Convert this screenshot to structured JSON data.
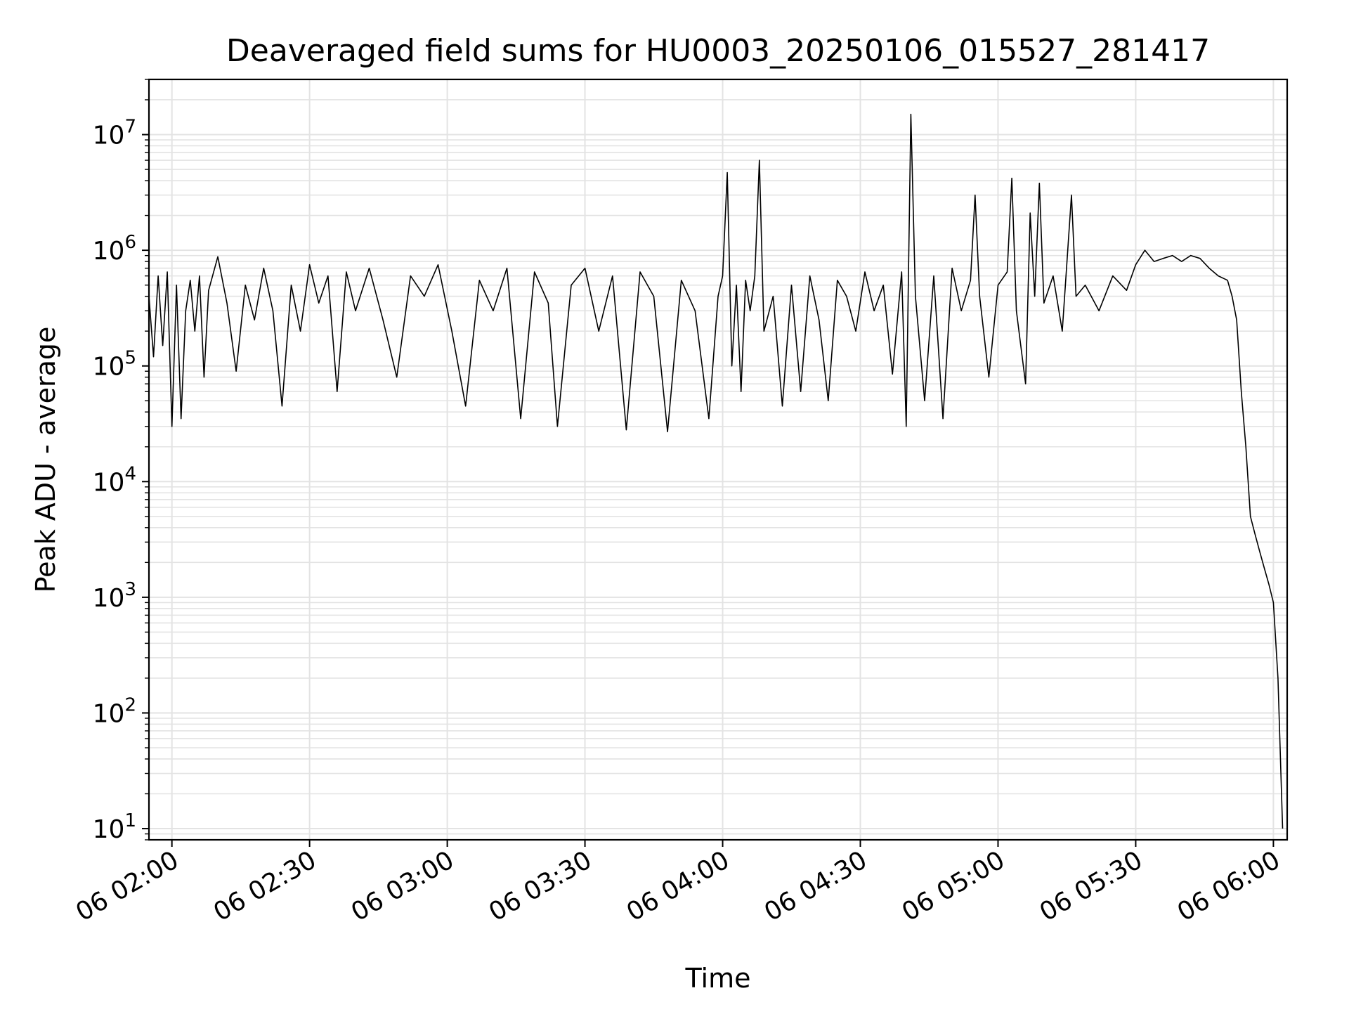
{
  "chart_data": {
    "type": "line",
    "title": "Deaveraged field sums for HU0003_20250106_015527_281417",
    "xlabel": "Time",
    "ylabel": "Peak ADU - average",
    "y_scale": "log",
    "ylim": [
      8,
      30000000
    ],
    "xlim": [
      "06 01:55",
      "06 06:03"
    ],
    "x_ticks": [
      {
        "time": "06 02:00",
        "label": "06 02:00"
      },
      {
        "time": "06 02:30",
        "label": "06 02:30"
      },
      {
        "time": "06 03:00",
        "label": "06 03:00"
      },
      {
        "time": "06 03:30",
        "label": "06 03:30"
      },
      {
        "time": "06 04:00",
        "label": "06 04:00"
      },
      {
        "time": "06 04:30",
        "label": "06 04:30"
      },
      {
        "time": "06 05:00",
        "label": "06 05:00"
      },
      {
        "time": "06 05:30",
        "label": "06 05:30"
      },
      {
        "time": "06 06:00",
        "label": "06 06:00"
      }
    ],
    "y_ticks": [
      {
        "value": 10,
        "base": "10",
        "exp": "1"
      },
      {
        "value": 100,
        "base": "10",
        "exp": "2"
      },
      {
        "value": 1000,
        "base": "10",
        "exp": "3"
      },
      {
        "value": 10000,
        "base": "10",
        "exp": "4"
      },
      {
        "value": 100000,
        "base": "10",
        "exp": "5"
      },
      {
        "value": 1000000,
        "base": "10",
        "exp": "6"
      },
      {
        "value": 10000000,
        "base": "10",
        "exp": "7"
      }
    ],
    "grid": true,
    "line_color": "#000000",
    "grid_color": "#e3e3e3",
    "series": [
      {
        "points": [
          [
            "06 01:55",
            400000
          ],
          [
            "06 01:56",
            120000
          ],
          [
            "06 01:57",
            600000
          ],
          [
            "06 01:58",
            150000
          ],
          [
            "06 01:59",
            650000
          ],
          [
            "06 02:00",
            30000
          ],
          [
            "06 02:01",
            500000
          ],
          [
            "06 02:02",
            35000
          ],
          [
            "06 02:03",
            300000
          ],
          [
            "06 02:04",
            550000
          ],
          [
            "06 02:05",
            200000
          ],
          [
            "06 02:06",
            600000
          ],
          [
            "06 02:07",
            80000
          ],
          [
            "06 02:08",
            450000
          ],
          [
            "06 02:10",
            880000
          ],
          [
            "06 02:12",
            350000
          ],
          [
            "06 02:14",
            90000
          ],
          [
            "06 02:16",
            500000
          ],
          [
            "06 02:18",
            250000
          ],
          [
            "06 02:20",
            700000
          ],
          [
            "06 02:22",
            300000
          ],
          [
            "06 02:24",
            45000
          ],
          [
            "06 02:26",
            500000
          ],
          [
            "06 02:28",
            200000
          ],
          [
            "06 02:30",
            750000
          ],
          [
            "06 02:32",
            350000
          ],
          [
            "06 02:34",
            600000
          ],
          [
            "06 02:36",
            60000
          ],
          [
            "06 02:38",
            650000
          ],
          [
            "06 02:40",
            300000
          ],
          [
            "06 02:43",
            700000
          ],
          [
            "06 02:46",
            250000
          ],
          [
            "06 02:49",
            80000
          ],
          [
            "06 02:52",
            600000
          ],
          [
            "06 02:55",
            400000
          ],
          [
            "06 02:58",
            750000
          ],
          [
            "06 03:01",
            200000
          ],
          [
            "06 03:04",
            45000
          ],
          [
            "06 03:07",
            550000
          ],
          [
            "06 03:10",
            300000
          ],
          [
            "06 03:13",
            700000
          ],
          [
            "06 03:16",
            35000
          ],
          [
            "06 03:19",
            650000
          ],
          [
            "06 03:22",
            350000
          ],
          [
            "06 03:24",
            30000
          ],
          [
            "06 03:27",
            500000
          ],
          [
            "06 03:30",
            700000
          ],
          [
            "06 03:33",
            200000
          ],
          [
            "06 03:36",
            600000
          ],
          [
            "06 03:39",
            28000
          ],
          [
            "06 03:42",
            650000
          ],
          [
            "06 03:45",
            400000
          ],
          [
            "06 03:48",
            27000
          ],
          [
            "06 03:51",
            550000
          ],
          [
            "06 03:54",
            300000
          ],
          [
            "06 03:57",
            35000
          ],
          [
            "06 03:59",
            400000
          ],
          [
            "06 04:00",
            600000
          ],
          [
            "06 04:01",
            4700000
          ],
          [
            "06 04:02",
            100000
          ],
          [
            "06 04:03",
            500000
          ],
          [
            "06 04:04",
            60000
          ],
          [
            "06 04:05",
            550000
          ],
          [
            "06 04:06",
            300000
          ],
          [
            "06 04:07",
            600000
          ],
          [
            "06 04:08",
            6000000
          ],
          [
            "06 04:09",
            200000
          ],
          [
            "06 04:11",
            400000
          ],
          [
            "06 04:13",
            45000
          ],
          [
            "06 04:15",
            500000
          ],
          [
            "06 04:17",
            60000
          ],
          [
            "06 04:19",
            600000
          ],
          [
            "06 04:21",
            250000
          ],
          [
            "06 04:23",
            50000
          ],
          [
            "06 04:25",
            550000
          ],
          [
            "06 04:27",
            400000
          ],
          [
            "06 04:29",
            200000
          ],
          [
            "06 04:31",
            650000
          ],
          [
            "06 04:33",
            300000
          ],
          [
            "06 04:35",
            500000
          ],
          [
            "06 04:37",
            85000
          ],
          [
            "06 04:39",
            650000
          ],
          [
            "06 04:40",
            30000
          ],
          [
            "06 04:41",
            15000000
          ],
          [
            "06 04:42",
            400000
          ],
          [
            "06 04:44",
            50000
          ],
          [
            "06 04:46",
            600000
          ],
          [
            "06 04:48",
            35000
          ],
          [
            "06 04:50",
            700000
          ],
          [
            "06 04:52",
            300000
          ],
          [
            "06 04:54",
            550000
          ],
          [
            "06 04:55",
            3000000
          ],
          [
            "06 04:56",
            400000
          ],
          [
            "06 04:58",
            80000
          ],
          [
            "06 05:00",
            500000
          ],
          [
            "06 05:02",
            650000
          ],
          [
            "06 05:03",
            4200000
          ],
          [
            "06 05:04",
            300000
          ],
          [
            "06 05:06",
            70000
          ],
          [
            "06 05:07",
            2100000
          ],
          [
            "06 05:08",
            400000
          ],
          [
            "06 05:09",
            3800000
          ],
          [
            "06 05:10",
            350000
          ],
          [
            "06 05:12",
            600000
          ],
          [
            "06 05:14",
            200000
          ],
          [
            "06 05:16",
            3000000
          ],
          [
            "06 05:17",
            400000
          ],
          [
            "06 05:19",
            500000
          ],
          [
            "06 05:22",
            300000
          ],
          [
            "06 05:25",
            600000
          ],
          [
            "06 05:28",
            450000
          ],
          [
            "06 05:30",
            750000
          ],
          [
            "06 05:32",
            1000000
          ],
          [
            "06 05:34",
            800000
          ],
          [
            "06 05:36",
            850000
          ],
          [
            "06 05:38",
            900000
          ],
          [
            "06 05:40",
            800000
          ],
          [
            "06 05:42",
            900000
          ],
          [
            "06 05:44",
            850000
          ],
          [
            "06 05:46",
            700000
          ],
          [
            "06 05:48",
            600000
          ],
          [
            "06 05:50",
            550000
          ],
          [
            "06 05:51",
            400000
          ],
          [
            "06 05:52",
            250000
          ],
          [
            "06 05:53",
            60000
          ],
          [
            "06 05:54",
            20000
          ],
          [
            "06 05:55",
            5000
          ],
          [
            "06 05:56",
            3500
          ],
          [
            "06 05:57",
            2500
          ],
          [
            "06 05:58",
            1800
          ],
          [
            "06 05:59",
            1300
          ],
          [
            "06 06:00",
            900
          ],
          [
            "06 06:01",
            200
          ],
          [
            "06 06:02",
            10
          ]
        ]
      }
    ]
  }
}
